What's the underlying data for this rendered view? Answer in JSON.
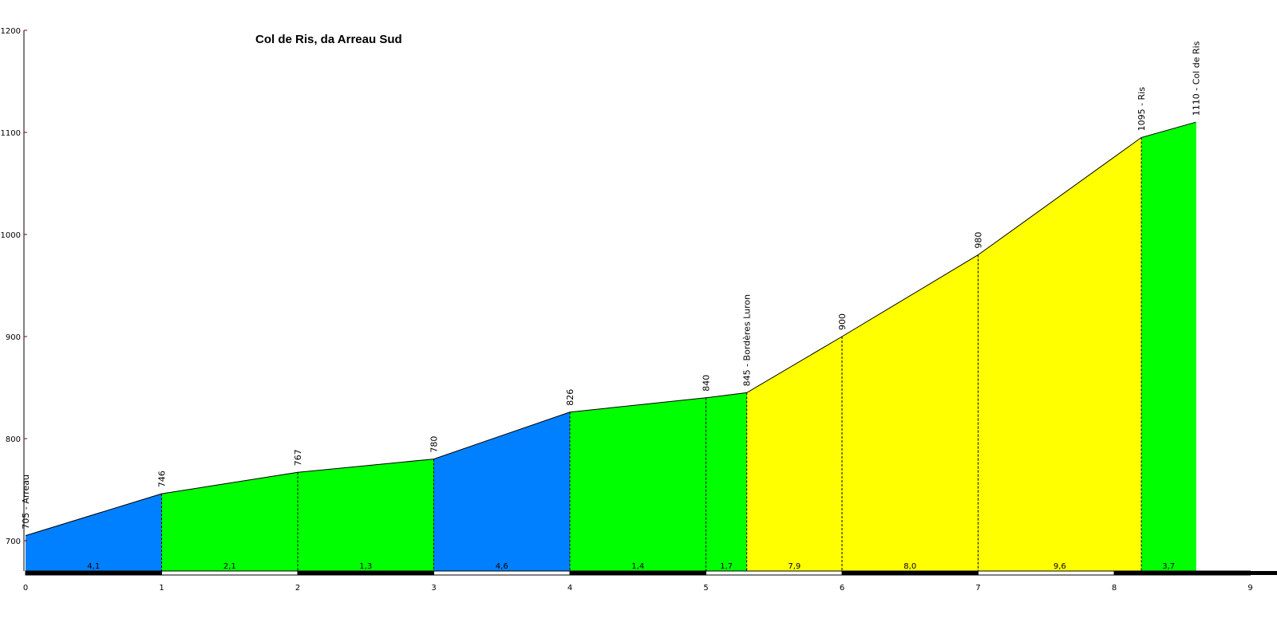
{
  "chart_data": {
    "type": "area",
    "title": "Col de Ris, da Arreau Sud",
    "xlabel": "",
    "ylabel": "",
    "xlim": [
      0,
      9
    ],
    "ylim": [
      670,
      1200
    ],
    "x_ticks": [
      "0",
      "1",
      "2",
      "3",
      "4",
      "5",
      "6",
      "7",
      "8",
      "9"
    ],
    "y_ticks": [
      "700",
      "800",
      "900",
      "1000",
      "1100",
      "1200"
    ],
    "points": [
      {
        "x": 0,
        "y": 705,
        "label": "705 - Arreau"
      },
      {
        "x": 1,
        "y": 746,
        "label": "746"
      },
      {
        "x": 2,
        "y": 767,
        "label": "767"
      },
      {
        "x": 3,
        "y": 780,
        "label": "780"
      },
      {
        "x": 4,
        "y": 826,
        "label": "826"
      },
      {
        "x": 5,
        "y": 840,
        "label": "840"
      },
      {
        "x": 5.3,
        "y": 845,
        "label": "845 - Bordères Luron"
      },
      {
        "x": 6,
        "y": 900,
        "label": "900"
      },
      {
        "x": 7,
        "y": 980,
        "label": "980"
      },
      {
        "x": 8.2,
        "y": 1095,
        "label": "1095 - Ris"
      },
      {
        "x": 8.6,
        "y": 1110,
        "label": "1110 - Col de Ris"
      }
    ],
    "segments": [
      {
        "from": 0,
        "to": 1,
        "gradient": "4,1",
        "color": "#0080ff"
      },
      {
        "from": 1,
        "to": 2,
        "gradient": "2,1",
        "color": "#00ff00"
      },
      {
        "from": 2,
        "to": 3,
        "gradient": "1,3",
        "color": "#00ff00"
      },
      {
        "from": 3,
        "to": 4,
        "gradient": "4,6",
        "color": "#0080ff"
      },
      {
        "from": 4,
        "to": 5,
        "gradient": "1,4",
        "color": "#00ff00"
      },
      {
        "from": 5,
        "to": 5.3,
        "gradient": "1,7",
        "color": "#00ff00"
      },
      {
        "from": 5.3,
        "to": 6,
        "gradient": "7,9",
        "color": "#ffff00"
      },
      {
        "from": 6,
        "to": 7,
        "gradient": "8,0",
        "color": "#ffff00"
      },
      {
        "from": 7,
        "to": 8.2,
        "gradient": "9,6",
        "color": "#ffff00"
      },
      {
        "from": 8.2,
        "to": 8.6,
        "gradient": "3,7",
        "color": "#00ff00"
      }
    ],
    "grid": false,
    "legend": "none"
  },
  "colors": {
    "axis": "#000000",
    "tick_marks": "#800000",
    "profile_line": "#000000"
  }
}
